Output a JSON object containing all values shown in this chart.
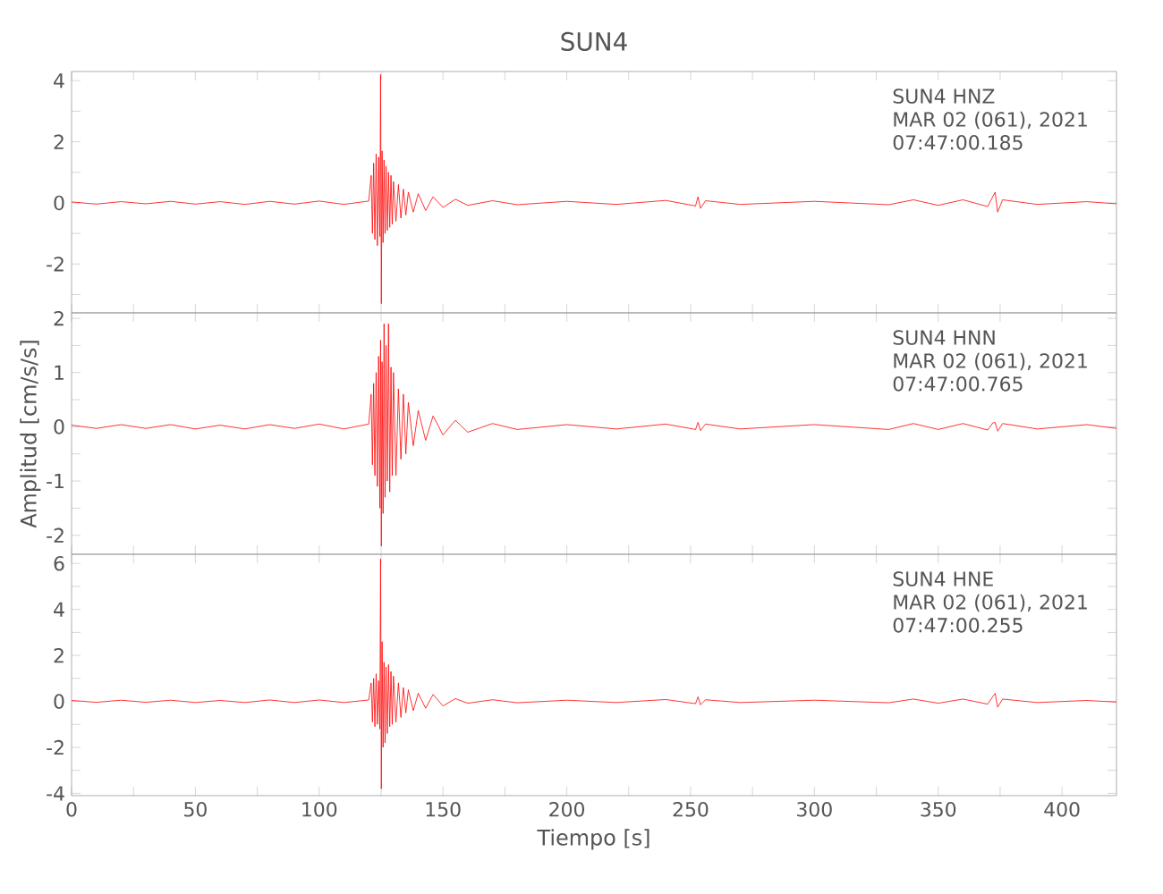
{
  "chart_data": [
    {
      "type": "line",
      "title": "SUN4",
      "annotations": [
        "SUN4   HNZ",
        "MAR 02 (061), 2021",
        "07:47:00.185"
      ],
      "xlim": [
        0,
        422
      ],
      "ylim": [
        -3.6,
        4.3
      ],
      "tick_labels": "y",
      "xticks": [
        0,
        {
          "value": 25,
          "label": null
        },
        50,
        {
          "value": 75,
          "label": null
        },
        100,
        {
          "value": 125,
          "label": null
        },
        150,
        {
          "value": 175,
          "label": null
        },
        200,
        {
          "value": 225,
          "label": null
        },
        250,
        {
          "value": 275,
          "label": null
        },
        300,
        {
          "value": 325,
          "label": null
        },
        350,
        {
          "value": 375,
          "label": null
        },
        400
      ],
      "yticks": [
        {
          "value": -3,
          "label": null
        },
        -2,
        {
          "value": -1,
          "label": null
        },
        0,
        {
          "value": 1,
          "label": null
        },
        2,
        {
          "value": 3,
          "label": null
        },
        4
      ],
      "series": [
        {
          "color": "#ff0000",
          "x": [
            0,
            10,
            20,
            30,
            40,
            50,
            60,
            70,
            80,
            90,
            100,
            110,
            120,
            121,
            121.5,
            122,
            122.5,
            123,
            123.5,
            124,
            124.5,
            124.8,
            125.1,
            125.4,
            125.8,
            126.2,
            126.6,
            127,
            127.5,
            128,
            128.5,
            129,
            129.5,
            130,
            131,
            132,
            133,
            134,
            135,
            136,
            138,
            140,
            143,
            146,
            150,
            155,
            160,
            170,
            180,
            200,
            220,
            240,
            252,
            253,
            254,
            256,
            270,
            300,
            330,
            340,
            350,
            360,
            370,
            372,
            373,
            374,
            376,
            390,
            410,
            422
          ],
          "values": [
            0.03,
            -0.04,
            0.04,
            -0.03,
            0.05,
            -0.04,
            0.04,
            -0.05,
            0.05,
            -0.04,
            0.06,
            -0.05,
            0.06,
            0.9,
            -1.0,
            1.3,
            -1.2,
            1.6,
            -1.4,
            1.5,
            -1.1,
            4.2,
            -3.3,
            1.7,
            -1.3,
            1.4,
            -1.0,
            1.2,
            -0.9,
            1.0,
            -0.8,
            0.9,
            -0.7,
            0.7,
            -0.6,
            0.6,
            -0.5,
            0.45,
            -0.4,
            0.35,
            -0.3,
            0.3,
            -0.25,
            0.2,
            -0.15,
            0.12,
            -0.08,
            0.07,
            -0.06,
            0.05,
            -0.05,
            0.08,
            -0.1,
            0.2,
            -0.18,
            0.07,
            -0.05,
            0.05,
            -0.06,
            0.1,
            -0.08,
            0.1,
            -0.12,
            0.2,
            0.35,
            -0.3,
            0.1,
            -0.05,
            0.04,
            -0.03
          ]
        }
      ]
    },
    {
      "type": "line",
      "ylabel": "Amplitud [cm/s/s]",
      "annotations": [
        "SUN4   HNN",
        "MAR 02 (061), 2021",
        "07:47:00.765"
      ],
      "xlim": [
        0,
        422
      ],
      "ylim": [
        -2.35,
        2.1
      ],
      "tick_labels": "y",
      "xticks": [
        0,
        {
          "value": 25,
          "label": null
        },
        50,
        {
          "value": 75,
          "label": null
        },
        100,
        {
          "value": 125,
          "label": null
        },
        150,
        {
          "value": 175,
          "label": null
        },
        200,
        {
          "value": 225,
          "label": null
        },
        250,
        {
          "value": 275,
          "label": null
        },
        300,
        {
          "value": 325,
          "label": null
        },
        350,
        {
          "value": 375,
          "label": null
        },
        400
      ],
      "yticks": [
        -2,
        {
          "value": -1.5,
          "label": null
        },
        -1,
        {
          "value": -0.5,
          "label": null
        },
        0,
        {
          "value": 0.5,
          "label": null
        },
        1,
        {
          "value": 1.5,
          "label": null
        },
        2
      ],
      "series": [
        {
          "color": "#ff0000",
          "x": [
            0,
            10,
            20,
            30,
            40,
            50,
            60,
            70,
            80,
            90,
            100,
            110,
            120,
            121,
            121.5,
            122,
            122.5,
            123,
            123.5,
            124,
            124.5,
            124.8,
            125.1,
            125.4,
            125.8,
            126.2,
            126.6,
            127,
            127.5,
            128,
            128.5,
            129,
            129.5,
            130,
            131,
            132,
            133,
            134,
            135,
            136,
            138,
            140,
            143,
            146,
            150,
            155,
            160,
            170,
            180,
            200,
            220,
            240,
            252,
            253,
            254,
            256,
            270,
            300,
            330,
            340,
            350,
            360,
            370,
            372,
            373,
            374,
            376,
            390,
            410,
            422
          ],
          "values": [
            0.03,
            -0.03,
            0.04,
            -0.03,
            0.04,
            -0.04,
            0.03,
            -0.04,
            0.04,
            -0.03,
            0.05,
            -0.04,
            0.05,
            0.6,
            -0.7,
            0.8,
            -0.9,
            1.0,
            -1.1,
            1.3,
            -1.5,
            1.6,
            -2.2,
            1.2,
            -1.6,
            1.9,
            -1.3,
            1.5,
            -1.0,
            1.9,
            -1.2,
            1.1,
            -0.9,
            1.0,
            -0.9,
            0.7,
            -0.6,
            0.6,
            -0.5,
            0.45,
            -0.35,
            0.3,
            -0.25,
            0.2,
            -0.15,
            0.12,
            -0.1,
            0.06,
            -0.05,
            0.04,
            -0.04,
            0.05,
            -0.05,
            0.08,
            -0.07,
            0.05,
            -0.04,
            0.04,
            -0.05,
            0.06,
            -0.05,
            0.06,
            -0.06,
            0.07,
            0.08,
            -0.08,
            0.06,
            -0.04,
            0.04,
            -0.03
          ]
        }
      ]
    },
    {
      "type": "line",
      "xlabel": "Tiempo [s]",
      "annotations": [
        "SUN4   HNE",
        "MAR 02 (061), 2021",
        "07:47:00.255"
      ],
      "xlim": [
        0,
        422
      ],
      "ylim": [
        -4.1,
        6.4
      ],
      "xticks": [
        0,
        {
          "value": 25,
          "label": null
        },
        50,
        {
          "value": 75,
          "label": null
        },
        100,
        {
          "value": 125,
          "label": null
        },
        150,
        {
          "value": 175,
          "label": null
        },
        200,
        {
          "value": 225,
          "label": null
        },
        250,
        {
          "value": 275,
          "label": null
        },
        300,
        {
          "value": 325,
          "label": null
        },
        350,
        {
          "value": 375,
          "label": null
        },
        400
      ],
      "yticks": [
        -4,
        {
          "value": -3,
          "label": null
        },
        -2,
        {
          "value": -1,
          "label": null
        },
        0,
        {
          "value": 1,
          "label": null
        },
        2,
        {
          "value": 3,
          "label": null
        },
        4,
        {
          "value": 5,
          "label": null
        },
        6
      ],
      "series": [
        {
          "color": "#ff0000",
          "x": [
            0,
            10,
            20,
            30,
            40,
            50,
            60,
            70,
            80,
            90,
            100,
            110,
            120,
            121,
            121.5,
            122,
            122.5,
            123,
            123.5,
            124,
            124.5,
            124.8,
            125.1,
            125.4,
            125.8,
            126.2,
            126.6,
            127,
            127.5,
            128,
            128.5,
            129,
            129.5,
            130,
            131,
            132,
            133,
            134,
            135,
            136,
            138,
            140,
            143,
            146,
            150,
            155,
            160,
            170,
            180,
            200,
            220,
            240,
            252,
            253,
            254,
            256,
            270,
            300,
            330,
            340,
            350,
            360,
            370,
            372,
            373,
            374,
            376,
            390,
            410,
            422
          ],
          "values": [
            0.04,
            -0.04,
            0.05,
            -0.04,
            0.05,
            -0.05,
            0.04,
            -0.05,
            0.06,
            -0.05,
            0.06,
            -0.05,
            0.06,
            0.8,
            -0.9,
            1.0,
            -1.1,
            1.2,
            -1.0,
            0.9,
            -1.2,
            6.2,
            -3.8,
            2.6,
            -2.0,
            1.7,
            -1.8,
            1.5,
            -1.4,
            1.6,
            -1.1,
            1.3,
            -1.0,
            1.1,
            -0.9,
            0.8,
            -0.7,
            0.6,
            -0.5,
            0.5,
            -0.4,
            0.35,
            -0.3,
            0.3,
            -0.2,
            0.12,
            -0.08,
            0.07,
            -0.06,
            0.05,
            -0.05,
            0.08,
            -0.1,
            0.2,
            -0.15,
            0.07,
            -0.05,
            0.05,
            -0.06,
            0.1,
            -0.08,
            0.1,
            -0.12,
            0.2,
            0.35,
            -0.25,
            0.1,
            -0.05,
            0.04,
            -0.03
          ]
        }
      ]
    }
  ]
}
